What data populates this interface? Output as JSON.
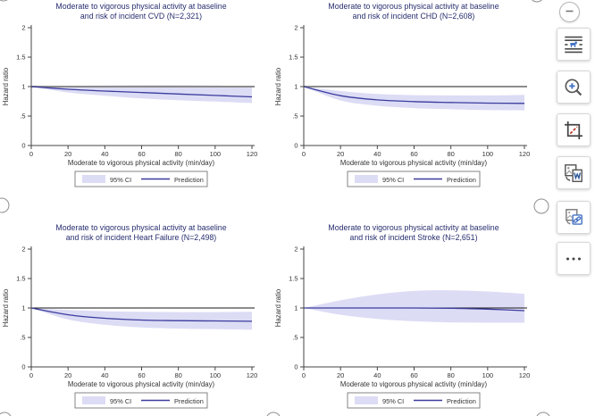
{
  "figure": {
    "colors": {
      "ci_fill": "#dcdcf5",
      "prediction_line": "#3c3c9e",
      "title_text": "#272e6e",
      "axis_text": "#333333",
      "axis_line": "#444444",
      "ref_line_top_row": "#8c8c8c",
      "ref_line_bottom_row": "#1a1a1a",
      "legend_border": "#666666"
    }
  },
  "chart_data": [
    {
      "type": "line",
      "title": [
        "Moderate to vigorous physical activity at baseline",
        "and risk of incident CVD (N=2,321)"
      ],
      "xlabel": "Moderate to vigorous physical activity (min/day)",
      "ylabel": "Hazard ratio",
      "x": [
        0,
        20,
        40,
        60,
        80,
        100,
        120
      ],
      "series": [
        {
          "name": "Prediction",
          "values": [
            1,
            0.955,
            0.925,
            0.9,
            0.875,
            0.85,
            0.825
          ]
        },
        {
          "name": "95% CI upper",
          "values": [
            1,
            1.015,
            1.02,
            1.025,
            1.025,
            1.02,
            1.005
          ]
        },
        {
          "name": "95% CI lower",
          "values": [
            1,
            0.9,
            0.845,
            0.8,
            0.77,
            0.745,
            0.72
          ]
        }
      ],
      "ref_line": {
        "y": 1,
        "color": "#8c8c8c",
        "width": 2
      },
      "xlim": [
        0,
        120
      ],
      "ylim": [
        0,
        2.1
      ],
      "grid": false,
      "xticks": [
        "0",
        "20",
        "40",
        "60",
        "80",
        "100",
        "120"
      ],
      "ytick_values": [
        0,
        0.5,
        1,
        1.5,
        2
      ],
      "ytick_labels": [
        "0",
        ".5",
        "1",
        "1.5",
        "2"
      ],
      "legend": {
        "ci": "95% CI",
        "prediction": "Prediction",
        "position": "bottom"
      }
    },
    {
      "type": "line",
      "title": [
        "Moderate to vigorous physical activity at baseline",
        "and risk of incident CHD (N=2,608)"
      ],
      "xlabel": "Moderate to vigorous physical activity (min/day)",
      "ylabel": "Hazard ratio",
      "x": [
        0,
        20,
        40,
        60,
        80,
        100,
        120
      ],
      "series": [
        {
          "name": "Prediction",
          "values": [
            1,
            0.845,
            0.775,
            0.745,
            0.73,
            0.72,
            0.715
          ]
        },
        {
          "name": "95% CI upper",
          "values": [
            1,
            0.925,
            0.875,
            0.855,
            0.85,
            0.85,
            0.86
          ]
        },
        {
          "name": "95% CI lower",
          "values": [
            1,
            0.765,
            0.675,
            0.635,
            0.615,
            0.6,
            0.595
          ]
        }
      ],
      "ref_line": {
        "y": 1,
        "color": "#8c8c8c",
        "width": 2
      },
      "xlim": [
        0,
        120
      ],
      "ylim": [
        0,
        2.1
      ],
      "grid": false,
      "xticks": [
        "0",
        "20",
        "40",
        "60",
        "80",
        "100",
        "120"
      ],
      "ytick_values": [
        0,
        0.5,
        1,
        1.5,
        2
      ],
      "ytick_labels": [
        "0",
        ".5",
        "1",
        "1.5",
        "2"
      ],
      "legend": {
        "ci": "95% CI",
        "prediction": "Prediction",
        "position": "bottom"
      }
    },
    {
      "type": "line",
      "title": [
        "Moderate to vigorous physical activity at baseline",
        "and risk of incident Heart Failure (N=2,498)"
      ],
      "xlabel": "Moderate to vigorous physical activity (min/day)",
      "ylabel": "Hazard ratio",
      "x": [
        0,
        20,
        40,
        60,
        80,
        100,
        120
      ],
      "series": [
        {
          "name": "Prediction",
          "values": [
            1,
            0.885,
            0.825,
            0.795,
            0.785,
            0.78,
            0.775
          ]
        },
        {
          "name": "95% CI upper",
          "values": [
            1,
            0.965,
            0.945,
            0.935,
            0.93,
            0.93,
            0.935
          ]
        },
        {
          "name": "95% CI lower",
          "values": [
            1,
            0.805,
            0.715,
            0.67,
            0.65,
            0.64,
            0.63
          ]
        }
      ],
      "ref_line": {
        "y": 1,
        "color": "#1a1a1a",
        "width": 1
      },
      "xlim": [
        0,
        120
      ],
      "ylim": [
        0,
        2.1
      ],
      "grid": false,
      "xticks": [
        "0",
        "20",
        "40",
        "60",
        "80",
        "100",
        "120"
      ],
      "ytick_values": [
        0,
        0.5,
        1,
        1.5,
        2
      ],
      "ytick_labels": [
        "0",
        ".5",
        "1",
        "1.5",
        "2"
      ],
      "legend": {
        "ci": "95% CI",
        "prediction": "Prediction",
        "position": "bottom"
      }
    },
    {
      "type": "line",
      "title": [
        "Moderate to vigorous physical activity at baseline",
        "and risk of incident Stroke (N=2,651)"
      ],
      "xlabel": "Moderate to vigorous physical activity (min/day)",
      "ylabel": "Hazard ratio",
      "x": [
        0,
        20,
        40,
        60,
        80,
        100,
        120
      ],
      "series": [
        {
          "name": "Prediction",
          "values": [
            1,
            1,
            1,
            1,
            0.995,
            0.98,
            0.955
          ]
        },
        {
          "name": "95% CI upper",
          "values": [
            1,
            1.13,
            1.23,
            1.29,
            1.3,
            1.28,
            1.24
          ]
        },
        {
          "name": "95% CI lower",
          "values": [
            1,
            0.885,
            0.815,
            0.775,
            0.755,
            0.75,
            0.75
          ]
        }
      ],
      "ref_line": {
        "y": 1,
        "color": "#1a1a1a",
        "width": 1
      },
      "xlim": [
        0,
        120
      ],
      "ylim": [
        0,
        2.1
      ],
      "grid": false,
      "xticks": [
        "0",
        "20",
        "40",
        "60",
        "80",
        "100",
        "120"
      ],
      "ytick_values": [
        0,
        0.5,
        1,
        1.5,
        2
      ],
      "ytick_labels": [
        "0",
        ".5",
        "1",
        "1.5",
        "2"
      ],
      "legend": {
        "ci": "95% CI",
        "prediction": "Prediction",
        "position": "bottom"
      }
    }
  ],
  "toolbar": {
    "collapse_button": {
      "icon": "minus-icon"
    },
    "buttons": [
      {
        "icon": "extract-text-from-image-icon"
      },
      {
        "icon": "visual-search-icon"
      },
      {
        "icon": "crop-icon"
      },
      {
        "icon": "export-image-to-word-icon"
      },
      {
        "icon": "copy-image-link-icon"
      },
      {
        "icon": "more-options-icon"
      }
    ]
  }
}
